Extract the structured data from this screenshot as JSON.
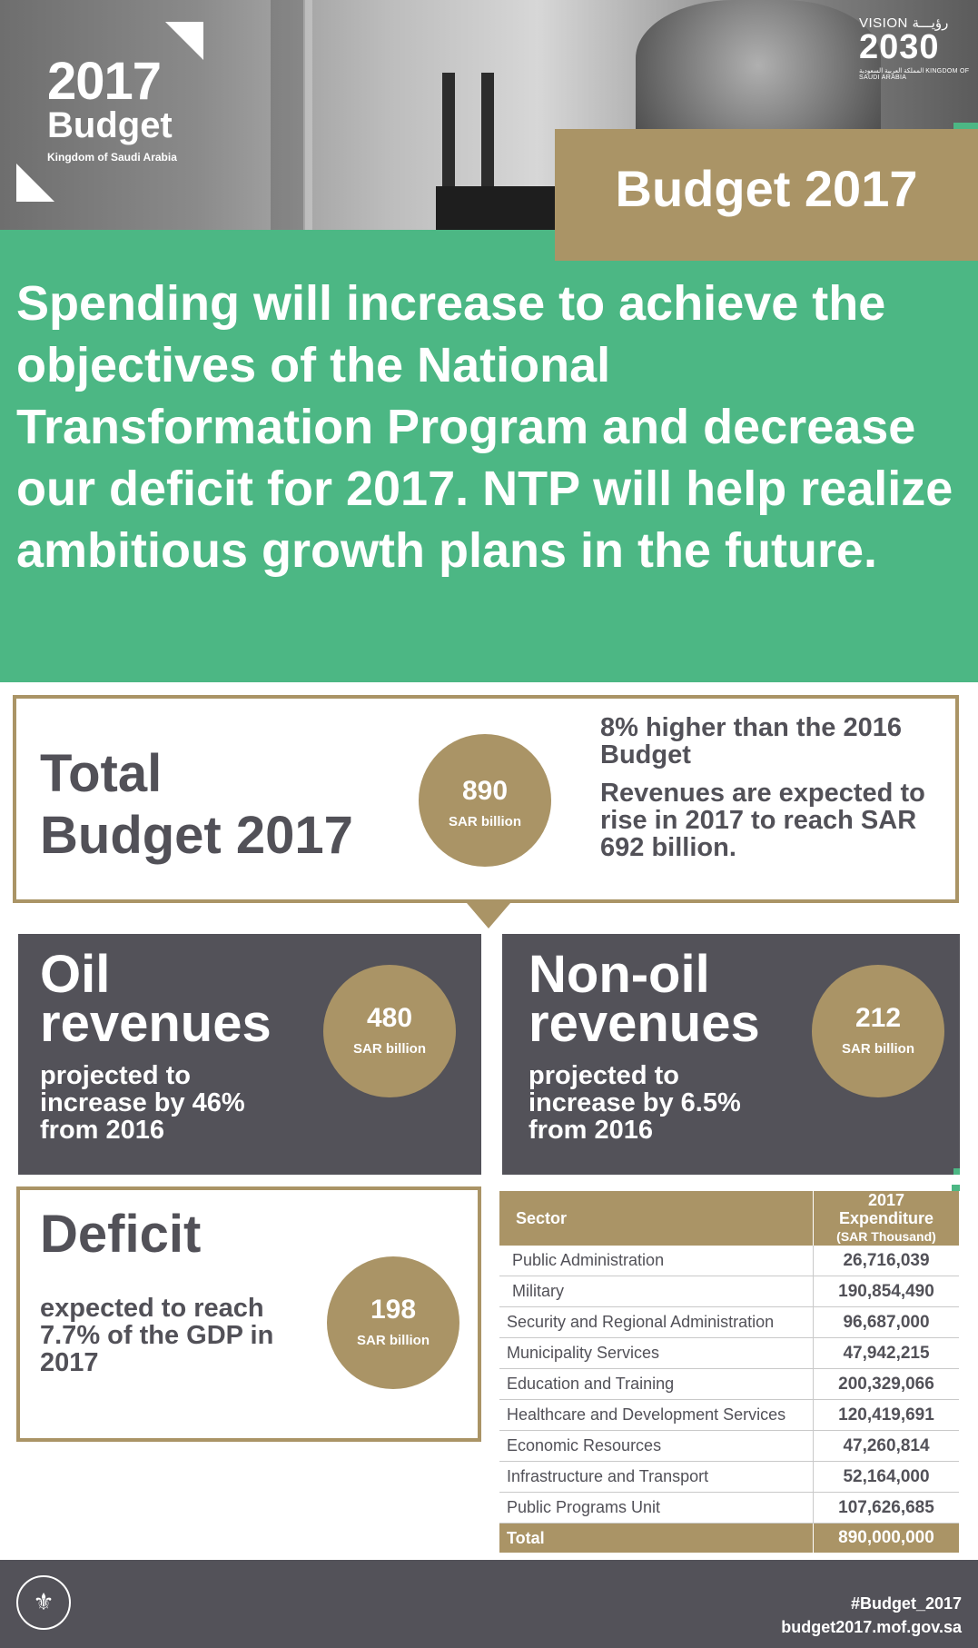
{
  "header": {
    "logo": {
      "year": "2017",
      "word": "Budget",
      "country": "Kingdom of Saudi Arabia"
    },
    "vision": {
      "line1": "VISION رؤيـــة",
      "line2": "2030",
      "line3": "المملكة العربية السعودية KINGDOM OF SAUDI ARABIA"
    },
    "tag": "Budget 2017"
  },
  "headline": "Spending will increase to achieve the objectives of the National Transformation Program and decrease our deficit for 2017. NTP will help realize ambitious growth plans in the future.",
  "total": {
    "title_line1": "Total",
    "title_line2": "Budget 2017",
    "value": "890",
    "unit": "SAR billion",
    "note1": "8% higher than the 2016 Budget",
    "note2": "Revenues are expected to rise in 2017 to reach SAR 692 billion."
  },
  "oil": {
    "title_line1": "Oil",
    "title_line2": "revenues",
    "sub": "projected to increase by 46% from 2016",
    "value": "480",
    "unit": "SAR billion"
  },
  "nonoil": {
    "title_line1": "Non-oil",
    "title_line2": "revenues",
    "sub": "projected to increase by 6.5% from 2016",
    "value": "212",
    "unit": "SAR billion"
  },
  "deficit": {
    "title": "Deficit",
    "sub": "expected to reach 7.7% of the GDP in 2017",
    "value": "198",
    "unit": "SAR billion"
  },
  "table": {
    "header_sector": "Sector",
    "header_exp": "2017 Expenditure",
    "header_exp_unit": "(SAR Thousand)",
    "rows": [
      {
        "sector": "Public Administration",
        "value": "26,716,039"
      },
      {
        "sector": "Military",
        "value": "190,854,490"
      },
      {
        "sector": "Security and Regional Administration",
        "value": "96,687,000"
      },
      {
        "sector": "Municipality Services",
        "value": "47,942,215"
      },
      {
        "sector": "Education and Training",
        "value": "200,329,066"
      },
      {
        "sector": "Healthcare and Development Services",
        "value": "120,419,691"
      },
      {
        "sector": "Economic Resources",
        "value": "47,260,814"
      },
      {
        "sector": "Infrastructure and Transport",
        "value": "52,164,000"
      },
      {
        "sector": "Public Programs Unit",
        "value": "107,626,685"
      }
    ],
    "total_label": "Total",
    "total_value": "890,000,000"
  },
  "footer": {
    "hashtag": "#Budget_2017",
    "url": "budget2017.mof.gov.sa"
  },
  "colors": {
    "green": "#4cb784",
    "gold": "#aa9466",
    "dark": "#535259"
  },
  "icons": [
    "ministry-seal-icon"
  ]
}
